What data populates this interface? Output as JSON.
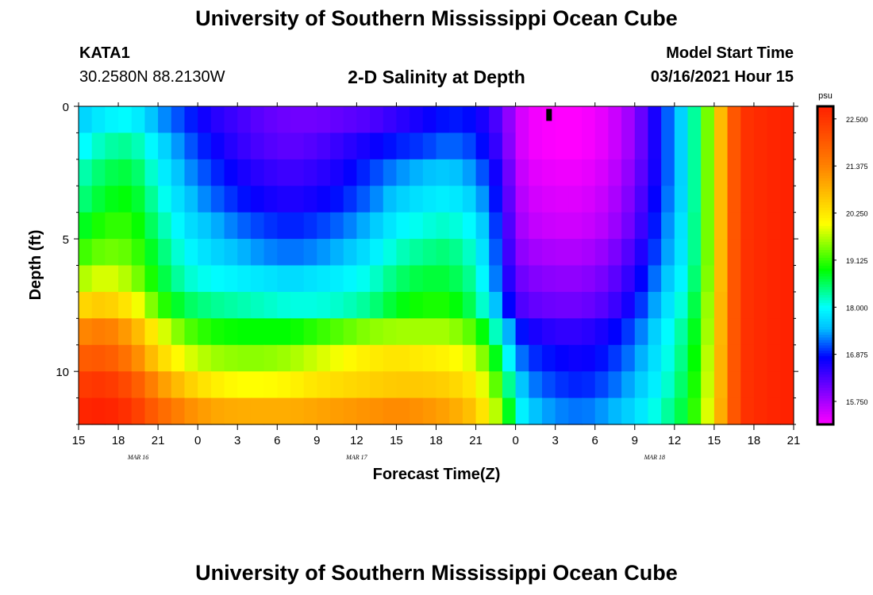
{
  "header": {
    "title_top": "University of Southern Mississippi Ocean Cube",
    "title_bottom": "University of Southern Mississippi Ocean Cube",
    "station_id": "KATA1",
    "station_coords": "30.2580N 88.2130W",
    "plot_title": "2-D Salinity at Depth",
    "model_start_label": "Model Start Time",
    "model_start_value": "03/16/2021 Hour 15"
  },
  "colors": {
    "stops": [
      "#ff00ff",
      "#8000ff",
      "#0000ff",
      "#00c0ff",
      "#00ffff",
      "#00ff00",
      "#ffff00",
      "#ff8000",
      "#ff2000"
    ],
    "stop_values": [
      15.2,
      16.0,
      16.8,
      17.5,
      18.0,
      18.9,
      20.0,
      21.4,
      22.8
    ],
    "marker": "#000000"
  },
  "chart_data": {
    "type": "heatmap",
    "title": "2-D Salinity at Depth",
    "xlabel": "Forecast Time(Z)",
    "ylabel": "Depth (ft)",
    "x_hours": [
      0,
      3,
      6,
      9,
      12,
      15,
      18,
      21,
      24,
      27,
      30,
      33,
      36,
      39,
      42,
      45,
      48,
      51,
      54
    ],
    "x_tick_labels": [
      "15",
      "18",
      "21",
      "0",
      "3",
      "6",
      "9",
      "12",
      "15",
      "18",
      "21",
      "0",
      "3",
      "6",
      "9",
      "12",
      "15",
      "18",
      "21"
    ],
    "date_labels": [
      {
        "text": "MAR 16",
        "hour": 4.5
      },
      {
        "text": "MAR 17",
        "hour": 21
      },
      {
        "text": "MAR 18",
        "hour": 43.5
      }
    ],
    "xlim": [
      0,
      54
    ],
    "ylim": [
      0,
      12
    ],
    "y_ticks": [
      0,
      5,
      10
    ],
    "y_tick_labels": [
      "0",
      "5",
      "10"
    ],
    "depth_levels": [
      0.5,
      1.5,
      2.5,
      3.5,
      4.5,
      5.5,
      6.5,
      7.5,
      8.5,
      9.5,
      10.5,
      11.5
    ],
    "key_hours": [
      0,
      2,
      4,
      6,
      8,
      10,
      12,
      14,
      16,
      18,
      20,
      22,
      24,
      26,
      28,
      30,
      32,
      33,
      34,
      36,
      38,
      40,
      42,
      44,
      46,
      47,
      48,
      49,
      50,
      52,
      54
    ],
    "salinity": [
      [
        17.6,
        17.9,
        18.0,
        17.4,
        17.0,
        16.6,
        16.4,
        16.2,
        16.1,
        16.1,
        16.2,
        16.3,
        16.5,
        16.7,
        16.9,
        16.8,
        16.2,
        15.6,
        15.3,
        15.2,
        15.2,
        15.4,
        15.9,
        16.9,
        17.9,
        18.8,
        20.0,
        21.5,
        22.5,
        22.7,
        22.8
      ],
      [
        17.9,
        18.3,
        18.4,
        17.8,
        17.2,
        16.8,
        16.5,
        16.3,
        16.2,
        16.3,
        16.5,
        16.7,
        16.9,
        17.0,
        17.2,
        17.0,
        16.3,
        15.6,
        15.3,
        15.2,
        15.2,
        15.4,
        15.9,
        16.9,
        17.9,
        18.8,
        20.0,
        21.5,
        22.5,
        22.7,
        22.8
      ],
      [
        18.2,
        18.6,
        18.7,
        18.0,
        17.4,
        17.0,
        16.7,
        16.5,
        16.4,
        16.5,
        16.7,
        17.0,
        17.3,
        17.5,
        17.6,
        17.3,
        16.5,
        15.7,
        15.4,
        15.3,
        15.3,
        15.5,
        16.0,
        16.9,
        17.9,
        18.8,
        20.0,
        21.5,
        22.5,
        22.7,
        22.8
      ],
      [
        18.4,
        18.8,
        18.9,
        18.2,
        17.6,
        17.2,
        16.9,
        16.7,
        16.6,
        16.7,
        16.9,
        17.2,
        17.6,
        17.8,
        17.9,
        17.6,
        16.6,
        15.8,
        15.5,
        15.4,
        15.4,
        15.6,
        16.1,
        17.0,
        17.9,
        18.8,
        20.0,
        21.5,
        22.5,
        22.7,
        22.8
      ],
      [
        18.7,
        19.1,
        19.1,
        18.4,
        17.8,
        17.5,
        17.2,
        17.0,
        16.9,
        17.0,
        17.2,
        17.5,
        17.9,
        18.1,
        18.2,
        17.9,
        16.7,
        15.9,
        15.6,
        15.5,
        15.5,
        15.7,
        16.2,
        17.1,
        18.0,
        18.8,
        20.0,
        21.5,
        22.5,
        22.7,
        22.8
      ],
      [
        19.1,
        19.4,
        19.3,
        18.6,
        18.0,
        17.7,
        17.5,
        17.3,
        17.2,
        17.3,
        17.5,
        17.8,
        18.2,
        18.4,
        18.5,
        18.1,
        16.8,
        16.0,
        15.8,
        15.7,
        15.7,
        15.9,
        16.4,
        17.2,
        18.0,
        18.8,
        20.0,
        21.5,
        22.5,
        22.7,
        22.8
      ],
      [
        19.6,
        19.9,
        19.6,
        18.8,
        18.2,
        18.0,
        17.9,
        17.8,
        17.7,
        17.8,
        17.9,
        18.1,
        18.5,
        18.7,
        18.7,
        18.3,
        16.9,
        16.2,
        16.0,
        15.9,
        15.9,
        16.1,
        16.6,
        17.4,
        18.1,
        18.9,
        20.0,
        21.5,
        22.5,
        22.7,
        22.8
      ],
      [
        20.4,
        20.6,
        20.2,
        19.2,
        18.6,
        18.4,
        18.3,
        18.2,
        18.1,
        18.1,
        18.2,
        18.4,
        18.8,
        19.0,
        19.0,
        18.5,
        17.2,
        16.4,
        16.2,
        16.1,
        16.1,
        16.3,
        16.8,
        17.6,
        18.3,
        19.0,
        20.1,
        21.5,
        22.5,
        22.7,
        22.8
      ],
      [
        21.3,
        21.5,
        21.0,
        20.0,
        19.3,
        19.0,
        18.9,
        18.9,
        18.9,
        19.1,
        19.3,
        19.5,
        19.6,
        19.6,
        19.6,
        19.2,
        17.9,
        17.0,
        16.7,
        16.5,
        16.5,
        16.7,
        17.1,
        17.8,
        18.5,
        19.1,
        20.1,
        21.5,
        22.5,
        22.7,
        22.8
      ],
      [
        21.9,
        22.0,
        21.5,
        20.5,
        19.9,
        19.6,
        19.5,
        19.5,
        19.6,
        19.8,
        20.0,
        20.2,
        20.3,
        20.2,
        20.1,
        19.8,
        18.5,
        17.4,
        17.0,
        16.8,
        16.7,
        16.9,
        17.3,
        17.9,
        18.6,
        19.2,
        20.2,
        21.5,
        22.5,
        22.7,
        22.8
      ],
      [
        22.4,
        22.5,
        22.1,
        21.2,
        20.6,
        20.2,
        20.0,
        20.0,
        20.1,
        20.3,
        20.4,
        20.5,
        20.6,
        20.6,
        20.5,
        20.2,
        19.0,
        17.8,
        17.3,
        17.0,
        16.9,
        17.1,
        17.5,
        18.0,
        18.7,
        19.3,
        20.2,
        21.5,
        22.5,
        22.7,
        22.8
      ],
      [
        22.7,
        22.8,
        22.5,
        21.8,
        21.3,
        21.0,
        20.9,
        20.9,
        20.9,
        21.0,
        21.1,
        21.2,
        21.3,
        21.2,
        21.0,
        20.6,
        19.4,
        18.2,
        17.6,
        17.3,
        17.2,
        17.4,
        17.7,
        18.2,
        18.8,
        19.4,
        20.3,
        21.5,
        22.5,
        22.7,
        22.8
      ]
    ],
    "marker": {
      "hour": 35.5,
      "depth_top": 0.1,
      "depth_bottom": 0.55
    },
    "colorbar": {
      "unit_label": "psu",
      "min": 15.2,
      "max": 22.8,
      "ticks": [
        15.75,
        16.875,
        18.0,
        19.125,
        20.25,
        21.375,
        22.5
      ],
      "tick_labels": [
        "15.750",
        "16.875",
        "18.000",
        "19.125",
        "20.250",
        "21.375",
        "22.500"
      ]
    }
  }
}
